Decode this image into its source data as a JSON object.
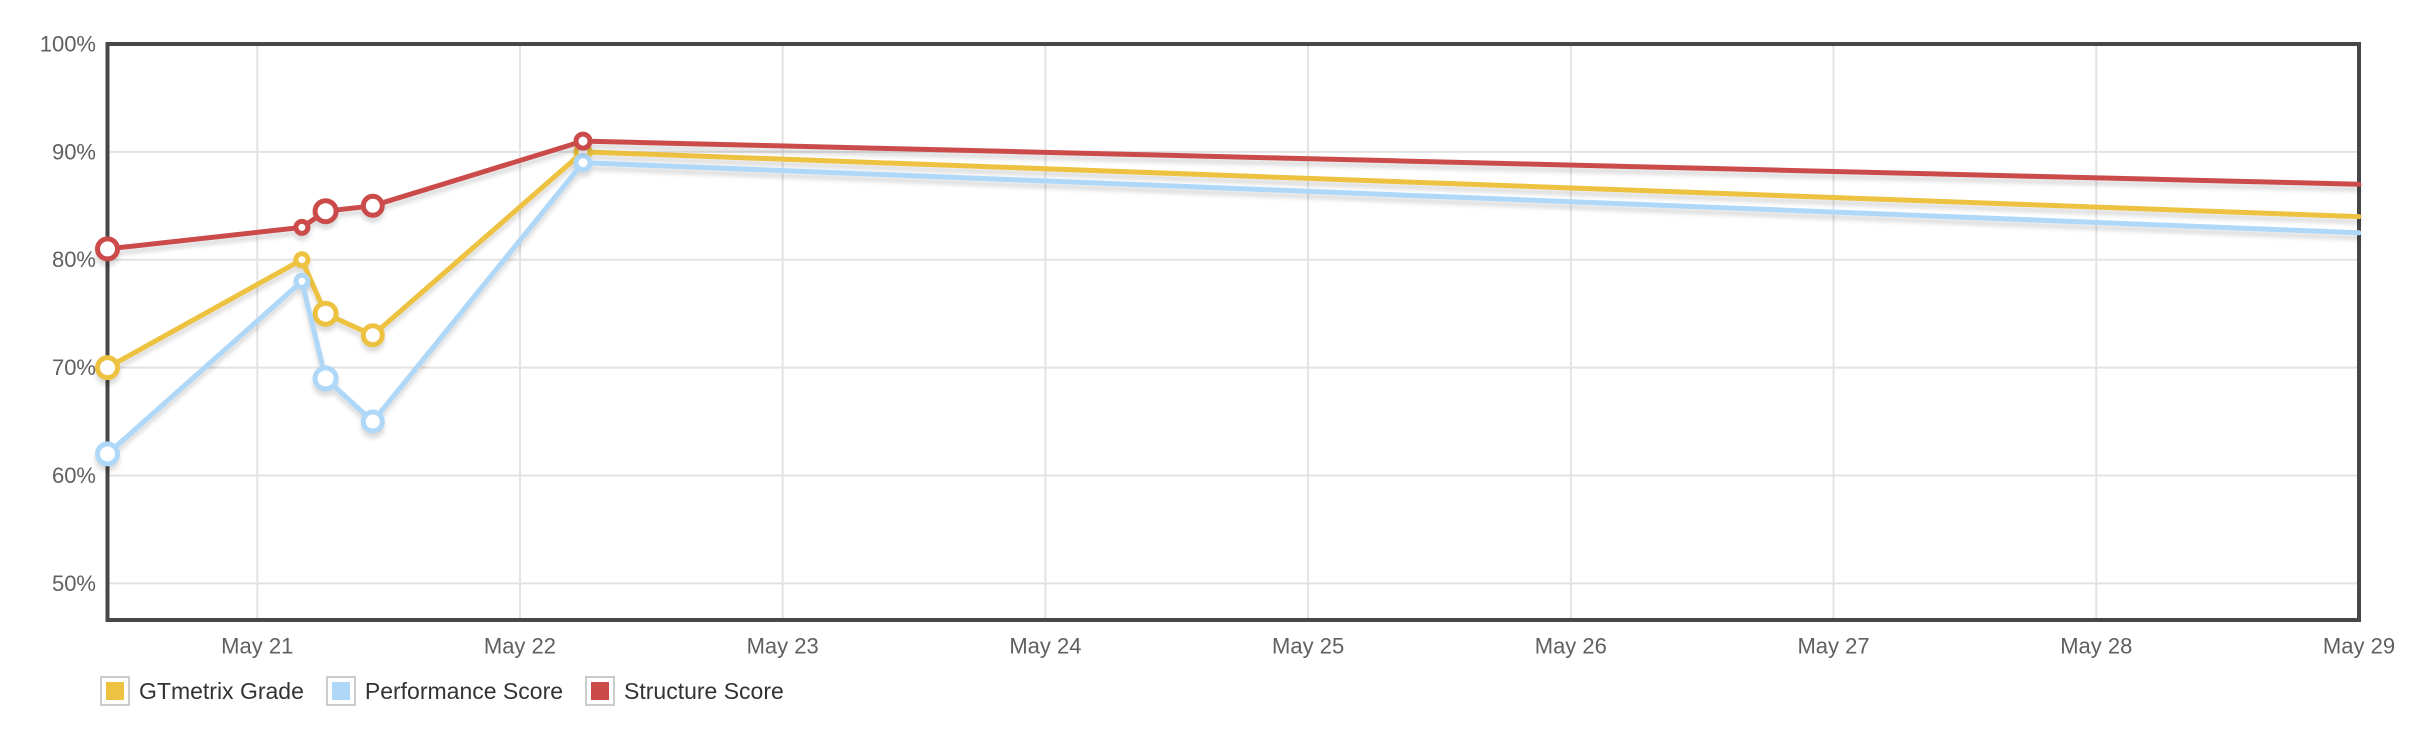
{
  "page": {
    "background_color": "#ffffff"
  },
  "chart_data": {
    "type": "line",
    "title": "",
    "xlabel": "",
    "ylabel": "",
    "grid": true,
    "legend_position": "bottom-left",
    "x_axis": {
      "tick_labels": [
        "May 21",
        "May 22",
        "May 23",
        "May 24",
        "May 25",
        "May 26",
        "May 27",
        "May 28",
        "May 29"
      ],
      "tick_days": [
        21,
        22,
        23,
        24,
        25,
        26,
        27,
        28,
        29
      ],
      "range_days": [
        20.43,
        29
      ]
    },
    "y_axis": {
      "tick_labels": [
        "100%",
        "90%",
        "80%",
        "70%",
        "60%",
        "50%"
      ],
      "tick_values": [
        100,
        90,
        80,
        70,
        60,
        50
      ],
      "unit": "%",
      "range": [
        46.6,
        100
      ]
    },
    "series": [
      {
        "name": "GTmetrix Grade",
        "color": "#edc240",
        "points": [
          {
            "day": 20.43,
            "value": 70,
            "marker_r": 10
          },
          {
            "day": 21.17,
            "value": 80,
            "marker_r": 6
          },
          {
            "day": 21.26,
            "value": 75,
            "marker_r": 10.5
          },
          {
            "day": 21.44,
            "value": 73,
            "marker_r": 9.5
          },
          {
            "day": 22.24,
            "value": 90,
            "marker_r": 7
          },
          {
            "day": 29,
            "value": 84,
            "marker_r": 0
          }
        ]
      },
      {
        "name": "Performance Score",
        "color": "#afd8f8",
        "points": [
          {
            "day": 20.43,
            "value": 62,
            "marker_r": 10
          },
          {
            "day": 21.17,
            "value": 78,
            "marker_r": 6
          },
          {
            "day": 21.26,
            "value": 69,
            "marker_r": 10.5
          },
          {
            "day": 21.44,
            "value": 65,
            "marker_r": 9.5
          },
          {
            "day": 22.24,
            "value": 89,
            "marker_r": 7
          },
          {
            "day": 29,
            "value": 82.5,
            "marker_r": 0
          }
        ]
      },
      {
        "name": "Structure Score",
        "color": "#cb4b4b",
        "points": [
          {
            "day": 20.43,
            "value": 81,
            "marker_r": 10
          },
          {
            "day": 21.17,
            "value": 83,
            "marker_r": 6
          },
          {
            "day": 21.26,
            "value": 84.5,
            "marker_r": 10.5
          },
          {
            "day": 21.44,
            "value": 85,
            "marker_r": 9.5
          },
          {
            "day": 22.24,
            "value": 91,
            "marker_r": 7
          },
          {
            "day": 29,
            "value": 87,
            "marker_r": 0
          }
        ]
      }
    ]
  },
  "colors": {
    "axis_border": "#474747",
    "gridline": "#e3e3e3",
    "tick_text": "#606060",
    "legend_text": "#333333",
    "legend_swatch_border": "#cccccc",
    "marker_fill": "#ffffff"
  }
}
